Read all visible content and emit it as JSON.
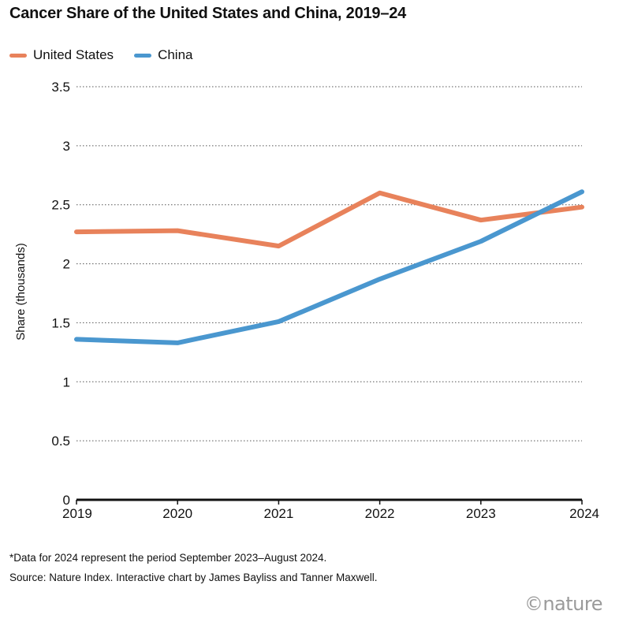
{
  "chart_data": {
    "type": "line",
    "title": "Cancer Share of the United States and China, 2019–24",
    "ylabel": "Share (thousands)",
    "xlabel": "",
    "x": [
      "2019",
      "2020",
      "2021",
      "2022",
      "2023",
      "2024"
    ],
    "ylim": [
      0,
      3.5
    ],
    "yticks": [
      "0",
      "0.5",
      "1",
      "1.5",
      "2",
      "2.5",
      "3",
      "3.5"
    ],
    "grid": "horizontal dotted",
    "legend_position": "top-left",
    "series": [
      {
        "name": "United States",
        "color": "#e8825b",
        "values": [
          2.27,
          2.28,
          2.15,
          2.6,
          2.37,
          2.48
        ]
      },
      {
        "name": "China",
        "color": "#4a97cf",
        "values": [
          1.36,
          1.33,
          1.51,
          1.87,
          2.19,
          2.61
        ]
      }
    ]
  },
  "footnote": "*Data for 2024 represent the period September 2023–August 2024.",
  "source": "Source: Nature Index. Interactive chart by James Bayliss and Tanner Maxwell.",
  "logo": "©nature"
}
